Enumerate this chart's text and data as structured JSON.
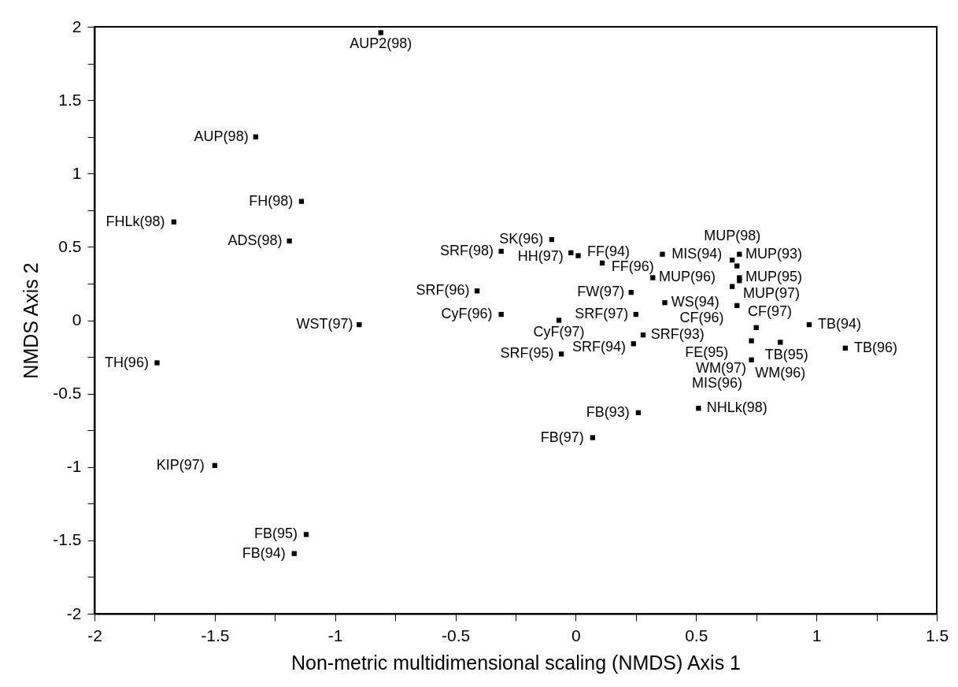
{
  "chart_data": {
    "type": "scatter",
    "xlabel": "Non-metric multidimensional scaling (NMDS) Axis 1",
    "ylabel": "NMDS Axis 2",
    "x": [
      -0.81,
      -1.33,
      -1.14,
      -1.67,
      -1.19,
      -0.9,
      -1.74,
      -1.5,
      -1.12,
      -1.17,
      -0.31,
      -0.1,
      -0.02,
      0.01,
      0.36,
      0.11,
      0.32,
      0.23,
      0.25,
      0.37,
      -0.41,
      -0.31,
      -0.07,
      0.28,
      0.24,
      -0.06,
      0.68,
      0.65,
      0.67,
      0.68,
      0.68,
      0.65,
      0.67,
      0.75,
      0.97,
      1.12,
      0.85,
      0.73,
      0.73,
      0.26,
      0.51,
      0.07
    ],
    "series": [
      {
        "color": "#000000",
        "values": [
          1.96,
          1.25,
          0.81,
          0.67,
          0.54,
          -0.03,
          -0.29,
          -0.99,
          -1.46,
          -1.59,
          0.47,
          0.55,
          0.46,
          0.44,
          0.45,
          0.39,
          0.29,
          0.19,
          0.04,
          0.12,
          0.2,
          0.04,
          0.0,
          -0.1,
          -0.16,
          -0.23,
          0.45,
          0.41,
          0.37,
          0.29,
          0.27,
          0.23,
          0.1,
          -0.05,
          -0.03,
          -0.19,
          -0.15,
          -0.14,
          -0.27,
          -0.63,
          -0.6,
          -0.8
        ]
      }
    ],
    "annotations": [
      {
        "text": "AUP2(98)",
        "x": -0.81,
        "y": 1.96
      },
      {
        "text": "AUP(98)",
        "x": -1.33,
        "y": 1.25
      },
      {
        "text": "FH(98)",
        "x": -1.14,
        "y": 0.81
      },
      {
        "text": "FHLk(98)",
        "x": -1.67,
        "y": 0.67
      },
      {
        "text": "ADS(98)",
        "x": -1.19,
        "y": 0.54
      },
      {
        "text": "WST(97)",
        "x": -0.9,
        "y": -0.03
      },
      {
        "text": "TH(96)",
        "x": -1.74,
        "y": -0.29
      },
      {
        "text": "KIP(97)",
        "x": -1.5,
        "y": -0.99
      },
      {
        "text": "FB(95)",
        "x": -1.12,
        "y": -1.46
      },
      {
        "text": "FB(94)",
        "x": -1.17,
        "y": -1.59
      },
      {
        "text": "SRF(98)",
        "x": -0.31,
        "y": 0.47
      },
      {
        "text": "SK(96)",
        "x": -0.1,
        "y": 0.55
      },
      {
        "text": "HH(97)",
        "x": -0.02,
        "y": 0.46
      },
      {
        "text": "FF(94)",
        "x": 0.01,
        "y": 0.44
      },
      {
        "text": "MIS(94)",
        "x": 0.36,
        "y": 0.45
      },
      {
        "text": "FF(96)",
        "x": 0.11,
        "y": 0.39
      },
      {
        "text": "MUP(96)",
        "x": 0.32,
        "y": 0.29
      },
      {
        "text": "FW(97)",
        "x": 0.23,
        "y": 0.19
      },
      {
        "text": "SRF(97)",
        "x": 0.25,
        "y": 0.04
      },
      {
        "text": "WS(94)",
        "x": 0.37,
        "y": 0.12
      },
      {
        "text": "SRF(96)",
        "x": -0.41,
        "y": 0.2
      },
      {
        "text": "CyF(96)",
        "x": -0.31,
        "y": 0.04
      },
      {
        "text": "CyF(97)",
        "x": -0.07,
        "y": 0.0
      },
      {
        "text": "SRF(93)",
        "x": 0.28,
        "y": -0.1
      },
      {
        "text": "SRF(94)",
        "x": 0.24,
        "y": -0.16
      },
      {
        "text": "SRF(95)",
        "x": -0.06,
        "y": -0.23
      },
      {
        "text": "MUP(93)",
        "x": 0.68,
        "y": 0.45
      },
      {
        "text": "MUP(98)",
        "x": 0.65,
        "y": 0.41
      },
      {
        "text": "MUP(97)",
        "x": 0.67,
        "y": 0.37
      },
      {
        "text": "MUP(95)",
        "x": 0.68,
        "y": 0.29
      },
      {
        "text": "CF(97)",
        "x": 0.68,
        "y": 0.27
      },
      {
        "text": "CF(96)",
        "x": 0.65,
        "y": 0.23
      },
      {
        "text": "FE(95)",
        "x": 0.67,
        "y": 0.1
      },
      {
        "text": "TB(95)",
        "x": 0.75,
        "y": -0.05
      },
      {
        "text": "TB(94)",
        "x": 0.97,
        "y": -0.03
      },
      {
        "text": "TB(96)",
        "x": 1.12,
        "y": -0.19
      },
      {
        "text": "WM(96)",
        "x": 0.85,
        "y": -0.15
      },
      {
        "text": "WM(97)",
        "x": 0.73,
        "y": -0.14
      },
      {
        "text": "MIS(96)",
        "x": 0.73,
        "y": -0.27
      },
      {
        "text": "FB(93)",
        "x": 0.26,
        "y": -0.63
      },
      {
        "text": "NHLk(98)",
        "x": 0.51,
        "y": -0.6
      },
      {
        "text": "FB(97)",
        "x": 0.07,
        "y": -0.8
      }
    ],
    "xlim": [
      -2,
      1.5
    ],
    "xticks": [
      -2,
      {
        "value": -1.75,
        "label": null
      },
      -1.5,
      {
        "value": -1.25,
        "label": null
      },
      -1,
      {
        "value": -0.75,
        "label": null
      },
      -0.5,
      {
        "value": -0.25,
        "label": null
      },
      0,
      {
        "value": 0.25,
        "label": null
      },
      0.5,
      {
        "value": 0.75,
        "label": null
      },
      1,
      {
        "value": 1.25,
        "label": null
      },
      1.5
    ],
    "ylim": [
      -2,
      2
    ],
    "yticks": [
      -2,
      {
        "value": -1.75,
        "label": null
      },
      -1.5,
      {
        "value": -1.25,
        "label": null
      },
      -1,
      {
        "value": -0.75,
        "label": null
      },
      -0.5,
      {
        "value": -0.25,
        "label": null
      },
      0,
      {
        "value": 0.25,
        "label": null
      },
      0.5,
      {
        "value": 0.75,
        "label": null
      },
      1,
      {
        "value": 1.25,
        "label": null
      },
      1.5,
      {
        "value": 1.75,
        "label": null
      },
      2
    ],
    "marker": "square",
    "grid": false
  }
}
